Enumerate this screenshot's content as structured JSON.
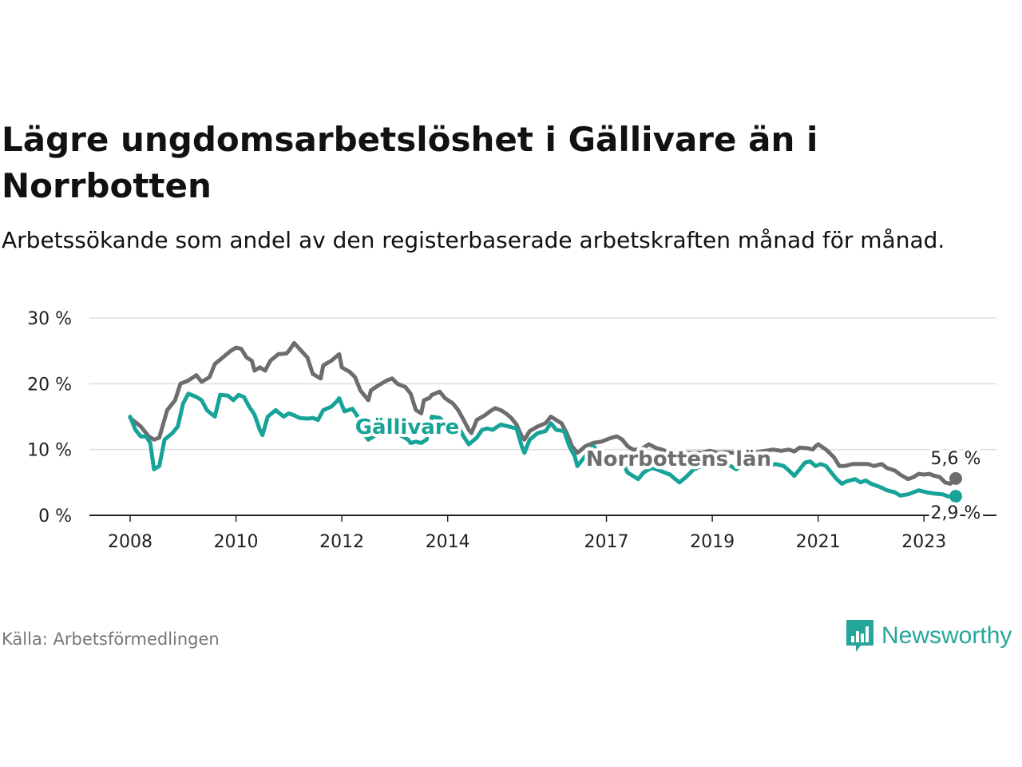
{
  "title": "Lägre ungdomsarbetslöshet i Gällivare än i Norrbotten",
  "subtitle": "Arbetssökande som andel av den registerbaserade arbetskraften månad för månad.",
  "source": "Källa: Arbetsförmedlingen",
  "logo": {
    "text": "Newsworthy",
    "icon": "newsworthy-chart-icon"
  },
  "colors": {
    "gallivare": "#17a398",
    "norrbotten": "#6d6d6f",
    "grid": "#dddddd",
    "axis": "#222222"
  },
  "chart_data": {
    "type": "line",
    "title": "Lägre ungdomsarbetslöshet i Gällivare än i Norrbotten",
    "xlabel": "",
    "ylabel": "",
    "xlim": [
      2008,
      2023.6
    ],
    "ylim": [
      0,
      30
    ],
    "x_ticks": [
      {
        "value": 2008,
        "label": "2008"
      },
      {
        "value": 2010,
        "label": "2010"
      },
      {
        "value": 2012,
        "label": "2012"
      },
      {
        "value": 2014,
        "label": "2014"
      },
      {
        "value": 2017,
        "label": "2017"
      },
      {
        "value": 2019,
        "label": "2019"
      },
      {
        "value": 2021,
        "label": "2021"
      },
      {
        "value": 2023,
        "label": "2023"
      }
    ],
    "y_ticks": [
      {
        "value": 0,
        "label": "0 %"
      },
      {
        "value": 10,
        "label": "10 %"
      },
      {
        "value": 20,
        "label": "20 %"
      },
      {
        "value": 30,
        "label": "30 %"
      }
    ],
    "grid": true,
    "series": [
      {
        "name": "Norrbottens län",
        "label": "Norrbottens län",
        "end_label": "5,6 %",
        "points": [
          [
            2008.0,
            14.8
          ],
          [
            2008.2,
            13.5
          ],
          [
            2008.35,
            12.0
          ],
          [
            2008.45,
            11.5
          ],
          [
            2008.55,
            11.8
          ],
          [
            2008.7,
            16.0
          ],
          [
            2008.85,
            17.5
          ],
          [
            2008.95,
            20.0
          ],
          [
            2009.1,
            20.5
          ],
          [
            2009.25,
            21.3
          ],
          [
            2009.35,
            20.3
          ],
          [
            2009.5,
            21.0
          ],
          [
            2009.6,
            23.0
          ],
          [
            2009.75,
            24.0
          ],
          [
            2009.9,
            25.0
          ],
          [
            2010.0,
            25.5
          ],
          [
            2010.1,
            25.3
          ],
          [
            2010.2,
            24.0
          ],
          [
            2010.3,
            23.5
          ],
          [
            2010.35,
            22.0
          ],
          [
            2010.45,
            22.5
          ],
          [
            2010.55,
            22.0
          ],
          [
            2010.65,
            23.5
          ],
          [
            2010.8,
            24.5
          ],
          [
            2010.95,
            24.6
          ],
          [
            2011.0,
            25.0
          ],
          [
            2011.1,
            26.2
          ],
          [
            2011.2,
            25.3
          ],
          [
            2011.35,
            24.0
          ],
          [
            2011.45,
            21.5
          ],
          [
            2011.6,
            20.8
          ],
          [
            2011.65,
            22.8
          ],
          [
            2011.8,
            23.5
          ],
          [
            2011.95,
            24.5
          ],
          [
            2012.0,
            22.5
          ],
          [
            2012.15,
            21.8
          ],
          [
            2012.25,
            21.0
          ],
          [
            2012.35,
            19.0
          ],
          [
            2012.5,
            17.5
          ],
          [
            2012.55,
            19.0
          ],
          [
            2012.7,
            19.8
          ],
          [
            2012.85,
            20.5
          ],
          [
            2012.95,
            20.8
          ],
          [
            2013.05,
            20.0
          ],
          [
            2013.2,
            19.5
          ],
          [
            2013.3,
            18.5
          ],
          [
            2013.4,
            16.0
          ],
          [
            2013.5,
            15.5
          ],
          [
            2013.55,
            17.5
          ],
          [
            2013.65,
            17.8
          ],
          [
            2013.7,
            18.3
          ],
          [
            2013.85,
            18.8
          ],
          [
            2013.95,
            17.8
          ],
          [
            2014.1,
            17.0
          ],
          [
            2014.2,
            16.0
          ],
          [
            2014.3,
            14.5
          ],
          [
            2014.4,
            13.0
          ],
          [
            2014.45,
            12.5
          ],
          [
            2014.55,
            14.5
          ],
          [
            2014.7,
            15.2
          ],
          [
            2014.8,
            15.8
          ],
          [
            2014.9,
            16.3
          ],
          [
            2015.0,
            16.0
          ],
          [
            2015.1,
            15.5
          ],
          [
            2015.2,
            14.8
          ],
          [
            2015.3,
            13.8
          ],
          [
            2015.4,
            12.0
          ],
          [
            2015.45,
            11.5
          ],
          [
            2015.55,
            12.8
          ],
          [
            2015.7,
            13.5
          ],
          [
            2015.85,
            14.0
          ],
          [
            2015.95,
            15.0
          ],
          [
            2016.05,
            14.5
          ],
          [
            2016.15,
            14.0
          ],
          [
            2016.25,
            12.5
          ],
          [
            2016.35,
            10.5
          ],
          [
            2016.45,
            9.5
          ],
          [
            2016.5,
            9.8
          ],
          [
            2016.6,
            10.5
          ],
          [
            2016.75,
            11.0
          ],
          [
            2016.9,
            11.2
          ],
          [
            2017.0,
            11.5
          ],
          [
            2017.1,
            11.8
          ],
          [
            2017.2,
            12.0
          ],
          [
            2017.3,
            11.5
          ],
          [
            2017.4,
            10.5
          ],
          [
            2017.5,
            10.0
          ],
          [
            2017.65,
            10.0
          ],
          [
            2017.8,
            10.8
          ],
          [
            2017.95,
            10.2
          ],
          [
            2018.05,
            10.0
          ],
          [
            2018.2,
            9.5
          ],
          [
            2018.35,
            9.3
          ],
          [
            2018.5,
            9.5
          ],
          [
            2018.65,
            9.5
          ],
          [
            2018.8,
            9.5
          ],
          [
            2018.95,
            9.8
          ],
          [
            2019.1,
            9.5
          ],
          [
            2019.25,
            9.6
          ],
          [
            2019.4,
            9.5
          ],
          [
            2019.55,
            9.5
          ],
          [
            2019.7,
            9.5
          ],
          [
            2019.85,
            9.6
          ],
          [
            2020.0,
            9.8
          ],
          [
            2020.15,
            10.0
          ],
          [
            2020.3,
            9.8
          ],
          [
            2020.45,
            10.0
          ],
          [
            2020.55,
            9.7
          ],
          [
            2020.65,
            10.3
          ],
          [
            2020.8,
            10.2
          ],
          [
            2020.9,
            10.0
          ],
          [
            2020.95,
            10.5
          ],
          [
            2021.0,
            10.8
          ],
          [
            2021.15,
            10.0
          ],
          [
            2021.3,
            8.8
          ],
          [
            2021.4,
            7.5
          ],
          [
            2021.5,
            7.5
          ],
          [
            2021.65,
            7.8
          ],
          [
            2021.8,
            7.8
          ],
          [
            2021.95,
            7.8
          ],
          [
            2022.05,
            7.5
          ],
          [
            2022.2,
            7.8
          ],
          [
            2022.3,
            7.2
          ],
          [
            2022.45,
            6.8
          ],
          [
            2022.55,
            6.2
          ],
          [
            2022.7,
            5.5
          ],
          [
            2022.8,
            5.8
          ],
          [
            2022.9,
            6.3
          ],
          [
            2023.0,
            6.2
          ],
          [
            2023.1,
            6.3
          ],
          [
            2023.2,
            6.0
          ],
          [
            2023.3,
            5.8
          ],
          [
            2023.4,
            5.0
          ],
          [
            2023.5,
            4.8
          ],
          [
            2023.6,
            5.6
          ]
        ]
      },
      {
        "name": "Gällivare",
        "label": "Gällivare",
        "end_label": "2,9 %",
        "points": [
          [
            2008.0,
            15.0
          ],
          [
            2008.1,
            13.0
          ],
          [
            2008.2,
            12.0
          ],
          [
            2008.3,
            12.0
          ],
          [
            2008.38,
            11.0
          ],
          [
            2008.45,
            7.0
          ],
          [
            2008.55,
            7.5
          ],
          [
            2008.65,
            11.5
          ],
          [
            2008.8,
            12.5
          ],
          [
            2008.9,
            13.5
          ],
          [
            2009.0,
            17.0
          ],
          [
            2009.1,
            18.5
          ],
          [
            2009.25,
            18.0
          ],
          [
            2009.35,
            17.5
          ],
          [
            2009.45,
            16.0
          ],
          [
            2009.6,
            15.0
          ],
          [
            2009.7,
            18.3
          ],
          [
            2009.85,
            18.2
          ],
          [
            2009.95,
            17.5
          ],
          [
            2010.05,
            18.3
          ],
          [
            2010.15,
            18.0
          ],
          [
            2010.25,
            16.5
          ],
          [
            2010.35,
            15.3
          ],
          [
            2010.45,
            13.0
          ],
          [
            2010.5,
            12.2
          ],
          [
            2010.6,
            15.0
          ],
          [
            2010.75,
            16.0
          ],
          [
            2010.9,
            15.0
          ],
          [
            2011.0,
            15.5
          ],
          [
            2011.1,
            15.2
          ],
          [
            2011.2,
            14.8
          ],
          [
            2011.35,
            14.7
          ],
          [
            2011.45,
            14.8
          ],
          [
            2011.55,
            14.5
          ],
          [
            2011.65,
            16.0
          ],
          [
            2011.8,
            16.5
          ],
          [
            2011.9,
            17.3
          ],
          [
            2011.95,
            17.8
          ],
          [
            2012.05,
            15.8
          ],
          [
            2012.2,
            16.2
          ],
          [
            2012.3,
            15.0
          ],
          [
            2012.38,
            13.0
          ],
          [
            2012.45,
            12.0
          ],
          [
            2012.5,
            11.5
          ],
          [
            2012.6,
            12.0
          ],
          [
            2012.75,
            12.5
          ],
          [
            2012.9,
            13.0
          ],
          [
            2013.0,
            12.5
          ],
          [
            2013.15,
            12.0
          ],
          [
            2013.25,
            11.5
          ],
          [
            2013.3,
            11.0
          ],
          [
            2013.4,
            11.2
          ],
          [
            2013.5,
            11.0
          ],
          [
            2013.6,
            11.5
          ],
          [
            2013.7,
            15.0
          ],
          [
            2013.85,
            14.8
          ],
          [
            2013.95,
            14.0
          ],
          [
            2014.05,
            13.5
          ],
          [
            2014.2,
            13.5
          ],
          [
            2014.3,
            12.0
          ],
          [
            2014.4,
            10.8
          ],
          [
            2014.55,
            11.8
          ],
          [
            2014.65,
            13.0
          ],
          [
            2014.75,
            13.2
          ],
          [
            2014.85,
            13.0
          ],
          [
            2015.0,
            13.8
          ],
          [
            2015.15,
            13.5
          ],
          [
            2015.3,
            13.2
          ],
          [
            2015.4,
            10.5
          ],
          [
            2015.45,
            9.5
          ],
          [
            2015.55,
            11.5
          ],
          [
            2015.7,
            12.5
          ],
          [
            2015.85,
            12.8
          ],
          [
            2015.95,
            14.0
          ],
          [
            2016.05,
            13.0
          ],
          [
            2016.2,
            12.8
          ],
          [
            2016.3,
            10.5
          ],
          [
            2016.4,
            9.0
          ],
          [
            2016.45,
            7.5
          ],
          [
            2016.55,
            8.5
          ],
          [
            2016.65,
            9.5
          ],
          [
            2016.75,
            10.5
          ],
          [
            2016.9,
            9.5
          ],
          [
            2017.0,
            9.0
          ],
          [
            2017.1,
            8.8
          ],
          [
            2017.2,
            8.5
          ],
          [
            2017.3,
            8.0
          ],
          [
            2017.4,
            6.5
          ],
          [
            2017.5,
            6.0
          ],
          [
            2017.6,
            5.5
          ],
          [
            2017.7,
            6.5
          ],
          [
            2017.85,
            7.2
          ],
          [
            2017.95,
            7.0
          ],
          [
            2018.1,
            6.5
          ],
          [
            2018.2,
            6.2
          ],
          [
            2018.3,
            5.5
          ],
          [
            2018.38,
            5.0
          ],
          [
            2018.5,
            5.8
          ],
          [
            2018.65,
            7.0
          ],
          [
            2018.8,
            7.5
          ],
          [
            2018.95,
            7.8
          ],
          [
            2019.1,
            7.5
          ],
          [
            2019.25,
            8.0
          ],
          [
            2019.35,
            7.5
          ],
          [
            2019.45,
            7.0
          ],
          [
            2019.6,
            7.8
          ],
          [
            2019.75,
            8.0
          ],
          [
            2019.9,
            7.8
          ],
          [
            2020.05,
            7.5
          ],
          [
            2020.2,
            7.8
          ],
          [
            2020.35,
            7.5
          ],
          [
            2020.45,
            6.8
          ],
          [
            2020.55,
            6.0
          ],
          [
            2020.65,
            7.0
          ],
          [
            2020.75,
            8.0
          ],
          [
            2020.85,
            8.2
          ],
          [
            2020.95,
            7.5
          ],
          [
            2021.05,
            7.8
          ],
          [
            2021.15,
            7.5
          ],
          [
            2021.25,
            6.5
          ],
          [
            2021.35,
            5.5
          ],
          [
            2021.45,
            4.8
          ],
          [
            2021.55,
            5.2
          ],
          [
            2021.7,
            5.5
          ],
          [
            2021.8,
            5.0
          ],
          [
            2021.9,
            5.3
          ],
          [
            2022.0,
            4.8
          ],
          [
            2022.1,
            4.5
          ],
          [
            2022.2,
            4.2
          ],
          [
            2022.3,
            3.8
          ],
          [
            2022.45,
            3.5
          ],
          [
            2022.55,
            3.0
          ],
          [
            2022.7,
            3.2
          ],
          [
            2022.8,
            3.5
          ],
          [
            2022.9,
            3.8
          ],
          [
            2023.05,
            3.5
          ],
          [
            2023.2,
            3.3
          ],
          [
            2023.35,
            3.2
          ],
          [
            2023.45,
            2.9
          ],
          [
            2023.55,
            2.8
          ],
          [
            2023.6,
            2.9
          ]
        ]
      }
    ]
  }
}
